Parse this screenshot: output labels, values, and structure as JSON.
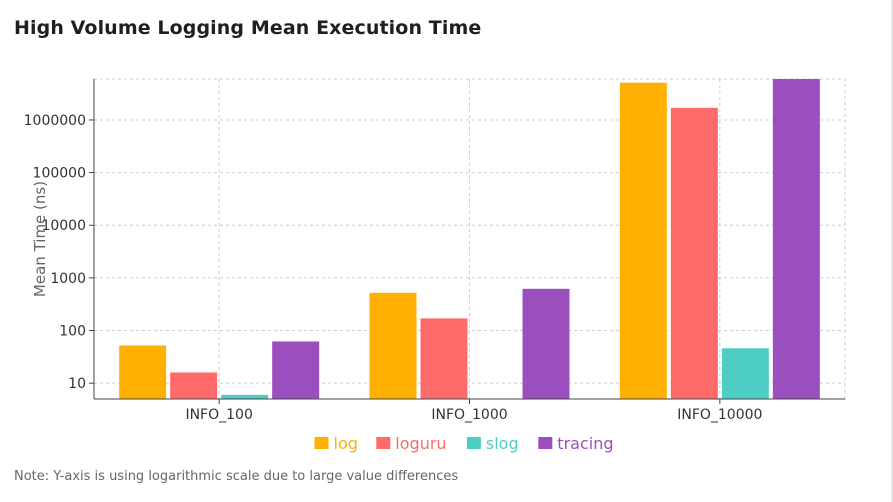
{
  "title": "High Volume Logging Mean Execution Time",
  "note": "Note: Y-axis is using logarithmic scale due to large value differences",
  "colors": {
    "log": "#FFB000",
    "loguru": "#FF6B6B",
    "slog": "#4ECDC4",
    "tracing": "#9B4FBE",
    "grid": "#cccccc",
    "axis": "#444444"
  },
  "chart_data": {
    "type": "bar",
    "title": "High Volume Logging Mean Execution Time",
    "xlabel": "",
    "ylabel": "Mean Time (ns)",
    "yscale": "log",
    "ylim": [
      5,
      6000000
    ],
    "categories": [
      "INFO_100",
      "INFO_1000",
      "INFO_10000"
    ],
    "yticks": [
      10,
      100,
      1000,
      10000,
      100000,
      1000000
    ],
    "ytick_labels": [
      "10",
      "100",
      "1000",
      "10000",
      "100000",
      "1000000"
    ],
    "series": [
      {
        "name": "log",
        "values": [
          52,
          520,
          5100000
        ]
      },
      {
        "name": "loguru",
        "values": [
          16,
          170,
          1700000
        ]
      },
      {
        "name": "slog",
        "values": [
          6,
          5,
          46
        ]
      },
      {
        "name": "tracing",
        "values": [
          62,
          620,
          6000000
        ]
      }
    ],
    "legend_position": "bottom-center",
    "grid": true
  }
}
